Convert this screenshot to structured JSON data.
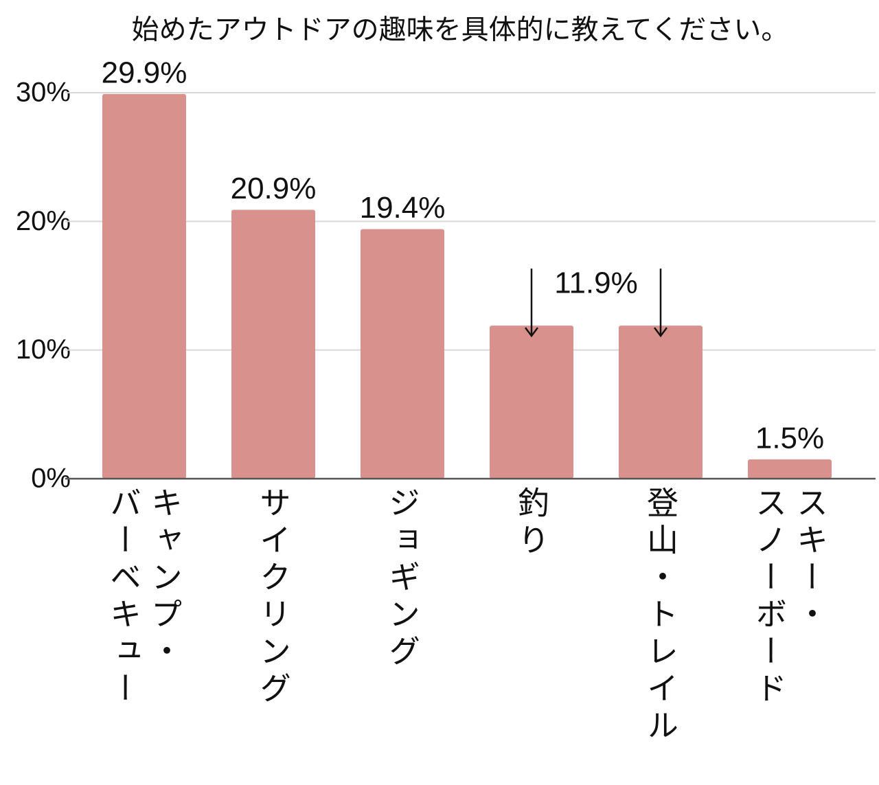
{
  "chart_data": {
    "type": "bar",
    "title": "始めたアウトドアの趣味を具体的に教えてください。",
    "categories": [
      "キャンプ・\nバーベキュー",
      "サイクリング",
      "ジョギング",
      "釣り",
      "登山・トレイル",
      "スキー・\nスノーボード"
    ],
    "values": [
      29.9,
      20.9,
      19.4,
      11.9,
      11.9,
      1.5
    ],
    "value_labels": [
      "29.9%",
      "20.9%",
      "19.4%",
      "11.9%",
      null,
      "1.5%"
    ],
    "color": "#d9918d",
    "ylim": [
      0,
      30
    ],
    "yticks": [
      {
        "value": 0,
        "label": "0%"
      },
      {
        "value": 10,
        "label": "10%"
      },
      {
        "value": 20,
        "label": "20%"
      },
      {
        "value": 30,
        "label": "30%"
      }
    ],
    "grid": true
  }
}
